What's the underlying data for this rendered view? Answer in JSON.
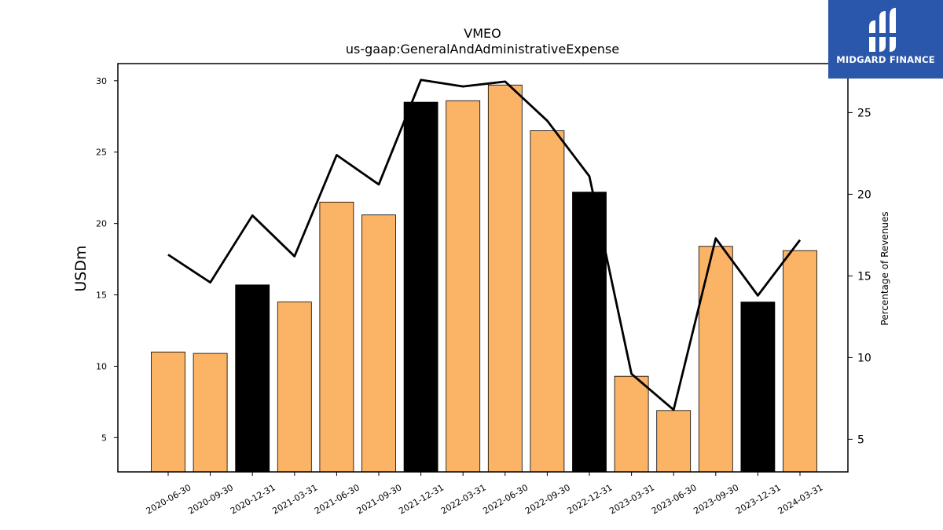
{
  "chart_data": {
    "type": "bar",
    "title": "VMEO",
    "subtitle": "us-gaap:GeneralAndAdministrativeExpense",
    "ylabel": "USDm",
    "y2label": "Percentage of Revenues",
    "ylim": [
      2.6,
      31.2
    ],
    "y2lim": [
      3.0,
      28.0
    ],
    "yticks": [
      5,
      10,
      15,
      20,
      25,
      30
    ],
    "y2ticks": [
      5,
      10,
      15,
      20,
      25
    ],
    "categories": [
      "2020-06-30",
      "2020-09-30",
      "2020-12-31",
      "2021-03-31",
      "2021-06-30",
      "2021-09-30",
      "2021-12-31",
      "2022-03-31",
      "2022-06-30",
      "2022-09-30",
      "2022-12-31",
      "2023-03-31",
      "2023-06-30",
      "2023-09-30",
      "2023-12-31",
      "2024-03-31"
    ],
    "values": [
      11.0,
      10.9,
      15.7,
      14.5,
      21.5,
      20.6,
      28.5,
      28.6,
      29.7,
      26.5,
      22.2,
      9.3,
      6.9,
      18.4,
      14.5,
      18.1
    ],
    "bar_colors": [
      "#fbb365",
      "#fbb365",
      "#000000",
      "#fbb365",
      "#fbb365",
      "#fbb365",
      "#000000",
      "#fbb365",
      "#fbb365",
      "#fbb365",
      "#000000",
      "#fbb365",
      "#fbb365",
      "#fbb365",
      "#000000",
      "#fbb365"
    ],
    "line_values": [
      16.3,
      14.6,
      18.7,
      16.2,
      22.4,
      20.6,
      27.0,
      26.6,
      26.9,
      24.5,
      21.1,
      9.0,
      6.8,
      17.3,
      13.8,
      17.2
    ],
    "line_color": "#000000",
    "grid": false,
    "legend": "none"
  },
  "brand": {
    "name": "MIDGARD FINANCE",
    "color": "#2b57ab",
    "icon": "midgard-logo-icon"
  }
}
